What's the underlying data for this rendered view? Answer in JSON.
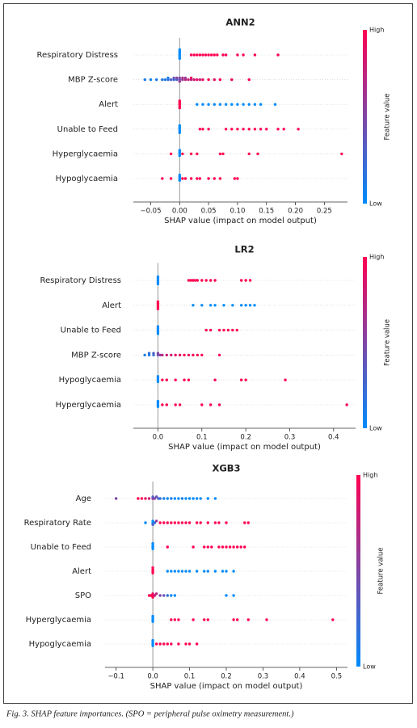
{
  "caption": "Fig. 3. SHAP feature importances. (SPO = peripheral pulse oximetry measurement.)",
  "chart_data": [
    {
      "type": "beeswarm",
      "title": "ANN2",
      "xlabel": "SHAP value (impact on model output)",
      "colorbar_label": "Feature value",
      "colorbar_high": "High",
      "colorbar_low": "Low",
      "colormap": [
        "#008bfb",
        "#ff0051"
      ],
      "zero_line": true,
      "row_lines": true,
      "xlim": [
        -0.08,
        0.29
      ],
      "xticks": [
        {
          "value": -0.05,
          "label": "−0.05"
        },
        {
          "value": 0,
          "label": "0.00"
        },
        0.05,
        {
          "value": 0.1,
          "label": "0.10"
        },
        0.15,
        {
          "value": 0.2,
          "label": "0.20"
        },
        0.25
      ],
      "series": [
        {
          "name": "Respiratory Distress",
          "values": [
            0,
            0,
            0,
            0,
            0,
            0,
            0.02,
            0.025,
            0.03,
            0.035,
            0.04,
            0.045,
            0.05,
            0.055,
            0.06,
            0.065,
            0.075,
            0.08,
            0.1,
            0.11,
            0.13,
            0.17
          ],
          "feature_values": [
            0,
            0,
            0,
            0,
            0,
            0,
            1,
            1,
            1,
            1,
            1,
            1,
            1,
            1,
            1,
            1,
            1,
            1,
            1,
            1,
            1,
            1
          ]
        },
        {
          "name": "MBP Z-score",
          "values": [
            -0.06,
            -0.05,
            -0.04,
            -0.03,
            -0.025,
            -0.02,
            -0.02,
            -0.015,
            -0.01,
            -0.01,
            -0.005,
            -0.005,
            0,
            0,
            0,
            0.005,
            0.005,
            0.01,
            0.01,
            0.015,
            0.02,
            0.02,
            0.025,
            0.03,
            0.035,
            0.04,
            0.05,
            0.06,
            0.07,
            0.09,
            0.12
          ],
          "feature_values": [
            0.1,
            0.05,
            0.1,
            0.15,
            0.1,
            0.2,
            0.1,
            0.3,
            0.2,
            0.4,
            0.3,
            0.5,
            0.4,
            0.5,
            0.6,
            0.6,
            0.7,
            0.7,
            0.6,
            0.8,
            0.7,
            0.9,
            0.8,
            0.9,
            0.8,
            0.9,
            1,
            0.9,
            1,
            0.9,
            1
          ]
        },
        {
          "name": "Alert",
          "values": [
            0,
            0,
            0,
            0,
            0,
            0.03,
            0.04,
            0.05,
            0.06,
            0.07,
            0.08,
            0.09,
            0.1,
            0.11,
            0.12,
            0.13,
            0.14,
            0.165
          ],
          "feature_values": [
            1,
            1,
            1,
            1,
            1,
            0,
            0,
            0,
            0,
            0,
            0,
            0,
            0,
            0,
            0,
            0,
            0,
            0
          ]
        },
        {
          "name": "Unable to Feed",
          "values": [
            0,
            0,
            0,
            0,
            0,
            0.035,
            0.04,
            0.05,
            0.08,
            0.09,
            0.1,
            0.11,
            0.12,
            0.13,
            0.14,
            0.15,
            0.17,
            0.18,
            0.205
          ],
          "feature_values": [
            0,
            0,
            0,
            0,
            0,
            1,
            1,
            1,
            1,
            1,
            1,
            1,
            1,
            1,
            1,
            1,
            1,
            1,
            1
          ]
        },
        {
          "name": "Hyperglycaemia",
          "values": [
            0,
            0,
            0,
            0,
            -0.015,
            0.005,
            0.02,
            0.03,
            0.07,
            0.075,
            0.12,
            0.135,
            0.28
          ],
          "feature_values": [
            0,
            0,
            0,
            0,
            1,
            1,
            1,
            1,
            1,
            1,
            1,
            1,
            1
          ]
        },
        {
          "name": "Hypoglycaemia",
          "values": [
            0,
            0,
            0,
            0,
            -0.03,
            -0.015,
            0.005,
            0.01,
            0.02,
            0.03,
            0.035,
            0.05,
            0.06,
            0.07,
            0.095,
            0.1
          ],
          "feature_values": [
            0,
            0,
            0,
            0,
            1,
            1,
            1,
            1,
            1,
            1,
            1,
            1,
            1,
            1,
            1,
            1
          ]
        }
      ]
    },
    {
      "type": "beeswarm",
      "title": "LR2",
      "xlabel": "SHAP value (impact on model output)",
      "colorbar_label": "Feature value",
      "colorbar_high": "High",
      "colorbar_low": "Low",
      "colormap": [
        "#008bfb",
        "#ff0051"
      ],
      "zero_line": true,
      "row_lines": true,
      "xlim": [
        -0.056,
        0.45
      ],
      "xticks": [
        {
          "value": 0,
          "label": "0.0"
        },
        0.1,
        0.2,
        0.3,
        0.4
      ],
      "series": [
        {
          "name": "Respiratory Distress",
          "values": [
            0,
            0,
            0,
            0,
            0,
            0.07,
            0.075,
            0.08,
            0.085,
            0.09,
            0.1,
            0.11,
            0.12,
            0.13,
            0.19,
            0.2,
            0.21
          ],
          "feature_values": [
            0,
            0,
            0,
            0,
            0,
            1,
            1,
            1,
            1,
            1,
            1,
            1,
            1,
            1,
            1,
            1,
            1
          ]
        },
        {
          "name": "Alert",
          "values": [
            0,
            0,
            0,
            0,
            0,
            0.08,
            0.1,
            0.12,
            0.13,
            0.15,
            0.17,
            0.19,
            0.2,
            0.21,
            0.22
          ],
          "feature_values": [
            1,
            1,
            1,
            1,
            1,
            0,
            0,
            0,
            0,
            0,
            0,
            0,
            0,
            0,
            0
          ]
        },
        {
          "name": "Unable to Feed",
          "values": [
            0,
            0,
            0,
            0,
            0,
            0.11,
            0.12,
            0.14,
            0.15,
            0.16,
            0.17,
            0.18
          ],
          "feature_values": [
            0,
            0,
            0,
            0,
            0,
            1,
            1,
            1,
            1,
            1,
            1,
            1
          ]
        },
        {
          "name": "MBP Z-score",
          "values": [
            -0.03,
            -0.02,
            -0.02,
            -0.01,
            -0.01,
            0,
            0,
            0.005,
            0.01,
            0.02,
            0.03,
            0.04,
            0.05,
            0.06,
            0.07,
            0.08,
            0.09,
            0.1,
            0.14
          ],
          "feature_values": [
            0.1,
            0.1,
            0.2,
            0.2,
            0.3,
            0.4,
            0.5,
            0.6,
            0.7,
            0.8,
            0.8,
            0.9,
            0.9,
            1,
            0.9,
            1,
            1,
            1,
            1
          ]
        },
        {
          "name": "Hypoglycaemia",
          "values": [
            0,
            0,
            0,
            0,
            0.01,
            0.02,
            0.04,
            0.06,
            0.07,
            0.13,
            0.19,
            0.2,
            0.29
          ],
          "feature_values": [
            0,
            0,
            0,
            0,
            1,
            1,
            1,
            1,
            1,
            1,
            1,
            1,
            1
          ]
        },
        {
          "name": "Hyperglycaemia",
          "values": [
            0,
            0,
            0,
            0,
            0.01,
            0.02,
            0.04,
            0.05,
            0.1,
            0.12,
            0.14,
            0.43
          ],
          "feature_values": [
            0,
            0,
            0,
            0,
            1,
            1,
            1,
            1,
            1,
            1,
            1,
            1
          ]
        }
      ]
    },
    {
      "type": "beeswarm",
      "title": "XGB3",
      "xlabel": "SHAP value (impact on model output)",
      "colorbar_label": "Feature value",
      "colorbar_high": "High",
      "colorbar_low": "Low",
      "colormap": [
        "#008bfb",
        "#ff0051"
      ],
      "zero_line": true,
      "row_lines": true,
      "xlim": [
        -0.13,
        0.53
      ],
      "xticks": [
        {
          "value": -0.1,
          "label": "−0.1"
        },
        {
          "value": 0,
          "label": "0.0"
        },
        0.1,
        0.2,
        0.3,
        0.4,
        0.5
      ],
      "series": [
        {
          "name": "Age",
          "values": [
            -0.1,
            -0.04,
            -0.03,
            -0.02,
            -0.01,
            0,
            0,
            0.005,
            0.01,
            0.015,
            0.02,
            0.03,
            0.04,
            0.05,
            0.06,
            0.07,
            0.08,
            0.09,
            0.1,
            0.11,
            0.12,
            0.13,
            0.15,
            0.17
          ],
          "feature_values": [
            0.5,
            1,
            1,
            0.9,
            0.8,
            0.6,
            0.3,
            0.5,
            0.4,
            0.3,
            0.2,
            0.1,
            0,
            0.1,
            0,
            0,
            0.1,
            0,
            0,
            0,
            0,
            0,
            0,
            0
          ]
        },
        {
          "name": "Respiratory Rate",
          "values": [
            -0.02,
            0,
            0,
            0,
            0.005,
            0.01,
            0.02,
            0.03,
            0.04,
            0.05,
            0.06,
            0.07,
            0.08,
            0.09,
            0.1,
            0.12,
            0.13,
            0.15,
            0.17,
            0.18,
            0.2,
            0.25,
            0.26
          ],
          "feature_values": [
            0,
            0,
            0,
            0.3,
            0.2,
            0.6,
            1,
            1,
            1,
            1,
            1,
            1,
            1,
            1,
            1,
            1,
            1,
            1,
            1,
            1,
            1,
            1,
            1
          ]
        },
        {
          "name": "Unable to Feed",
          "values": [
            0,
            0,
            0,
            0,
            0.04,
            0.11,
            0.14,
            0.15,
            0.16,
            0.18,
            0.19,
            0.2,
            0.21,
            0.22,
            0.23,
            0.24,
            0.25
          ],
          "feature_values": [
            0,
            0,
            0,
            0,
            1,
            1,
            1,
            1,
            1,
            1,
            1,
            1,
            1,
            1,
            1,
            1,
            1
          ]
        },
        {
          "name": "Alert",
          "values": [
            0,
            0,
            0,
            0,
            0.04,
            0.05,
            0.06,
            0.07,
            0.08,
            0.09,
            0.1,
            0.12,
            0.14,
            0.15,
            0.17,
            0.19,
            0.2,
            0.22
          ],
          "feature_values": [
            1,
            1,
            1,
            1,
            0,
            0,
            0,
            0,
            0,
            0,
            0,
            0,
            0,
            0,
            0,
            0,
            0,
            0
          ]
        },
        {
          "name": "SPO",
          "values": [
            -0.01,
            -0.005,
            0,
            0,
            0,
            0.005,
            0.01,
            0.02,
            0.03,
            0.04,
            0.05,
            0.06,
            0.2,
            0.22
          ],
          "feature_values": [
            1,
            1,
            1,
            0.9,
            1,
            0.8,
            0.7,
            0.5,
            0.4,
            0.2,
            0,
            0,
            0,
            0
          ]
        },
        {
          "name": "Hyperglycaemia",
          "values": [
            0,
            0,
            0,
            0,
            0.05,
            0.06,
            0.07,
            0.11,
            0.14,
            0.15,
            0.22,
            0.23,
            0.26,
            0.31,
            0.49
          ],
          "feature_values": [
            0,
            0,
            0,
            0,
            1,
            1,
            1,
            1,
            1,
            1,
            1,
            1,
            1,
            1,
            1
          ]
        },
        {
          "name": "Hypoglycaemia",
          "values": [
            0,
            0,
            0,
            0,
            0.01,
            0.02,
            0.03,
            0.04,
            0.05,
            0.07,
            0.09,
            0.1,
            0.12
          ],
          "feature_values": [
            0,
            0,
            0,
            0,
            1,
            1,
            1,
            1,
            1,
            1,
            1,
            1,
            1
          ]
        }
      ]
    }
  ]
}
